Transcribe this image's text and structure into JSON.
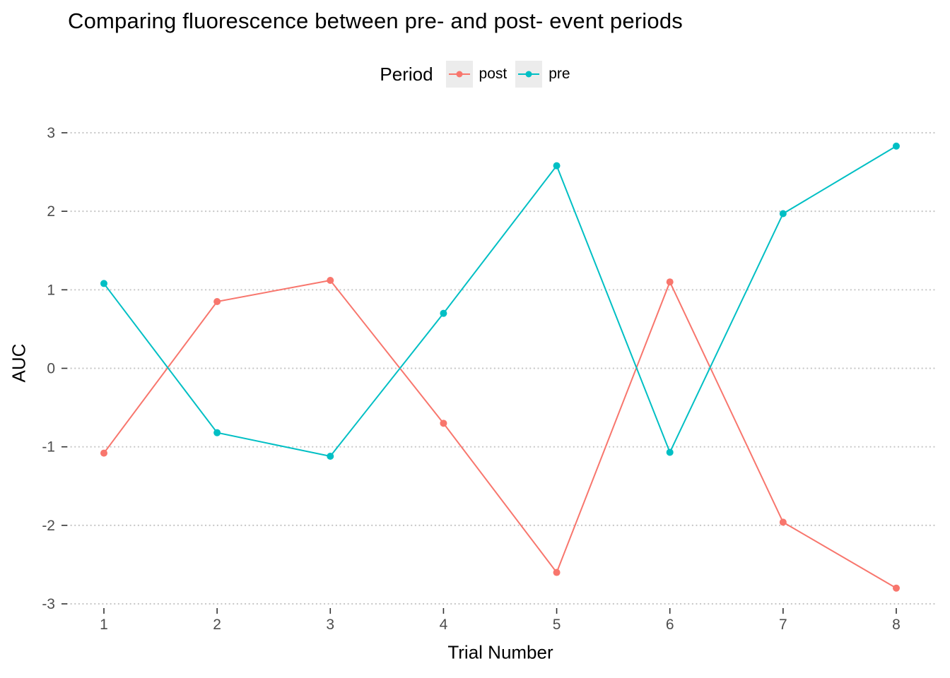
{
  "chart_data": {
    "type": "line",
    "title": "Comparing fluorescence between pre- and post- event periods",
    "xlabel": "Trial Number",
    "ylabel": "AUC",
    "legend_title": "Period",
    "legend_position": "top",
    "grid": "horizontal-dotted",
    "x": [
      1,
      2,
      3,
      4,
      5,
      6,
      7,
      8
    ],
    "xticks": [
      1,
      2,
      3,
      4,
      5,
      6,
      7,
      8
    ],
    "yticks": [
      -3,
      -2,
      -1,
      0,
      1,
      2,
      3
    ],
    "xlim": [
      1,
      8
    ],
    "ylim": [
      -3,
      3
    ],
    "series": [
      {
        "name": "post",
        "color": "#F8766D",
        "values": [
          -1.08,
          0.85,
          1.12,
          -0.7,
          -2.6,
          1.1,
          -1.96,
          -2.8
        ]
      },
      {
        "name": "pre",
        "color": "#00BFC4",
        "values": [
          1.08,
          -0.82,
          -1.12,
          0.7,
          2.58,
          -1.07,
          1.97,
          2.83
        ]
      }
    ]
  }
}
